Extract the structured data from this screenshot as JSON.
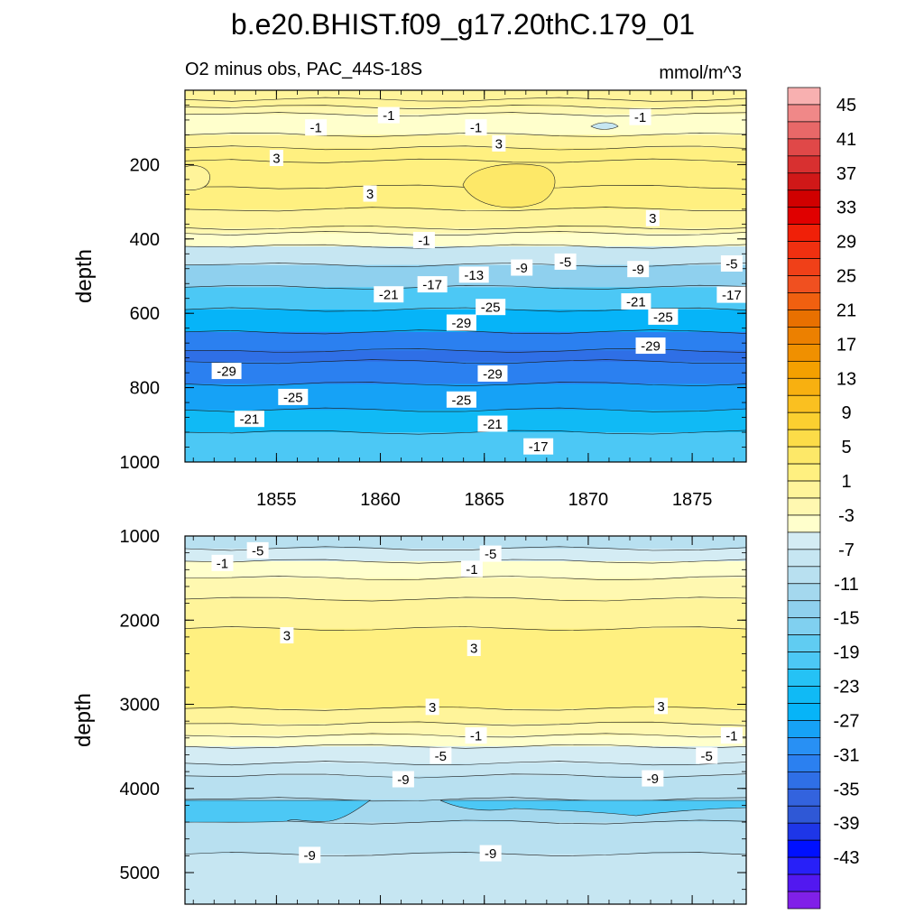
{
  "title": "b.e20.BHIST.f09_g17.20thC.179_01",
  "chart_data": [
    {
      "type": "contour",
      "panel": "upper",
      "subtitle_left": "O2 minus obs, PAC_44S-18S",
      "subtitle_right": "mmol/m^3",
      "ylabel": "depth",
      "ylim": [
        0,
        1000
      ],
      "y_reversed": true,
      "y_ticks": [
        "200",
        "400",
        "600",
        "800",
        "1000"
      ],
      "y_tick_values": [
        200,
        400,
        600,
        800,
        1000
      ],
      "xlim": [
        1850.6,
        1877.6
      ],
      "x_ticks": [
        "1855",
        "1860",
        "1865",
        "1870",
        "1875"
      ],
      "x_tick_values": [
        1855,
        1860,
        1865,
        1870,
        1875
      ],
      "bands": [
        {
          "depth": 0,
          "value": 1.5
        },
        {
          "depth": 25,
          "value": 1
        },
        {
          "depth": 45,
          "value": 0.5
        },
        {
          "depth": 65,
          "value": -2
        },
        {
          "depth": 120,
          "value": 1
        },
        {
          "depth": 155,
          "value": 3.5
        },
        {
          "depth": 190,
          "value": 4.5
        },
        {
          "depth": 260,
          "value": 3.5
        },
        {
          "depth": 320,
          "value": 1.5
        },
        {
          "depth": 370,
          "value": 0.5
        },
        {
          "depth": 385,
          "value": -2
        },
        {
          "depth": 420,
          "value": -6
        },
        {
          "depth": 470,
          "value": -12
        },
        {
          "depth": 530,
          "value": -19
        },
        {
          "depth": 590,
          "value": -25
        },
        {
          "depth": 650,
          "value": -30
        },
        {
          "depth": 700,
          "value": -32
        },
        {
          "depth": 730,
          "value": -30
        },
        {
          "depth": 790,
          "value": -26
        },
        {
          "depth": 860,
          "value": -22
        },
        {
          "depth": 920,
          "value": -18
        },
        {
          "depth": 1000,
          "value": -16
        }
      ],
      "labels": [
        {
          "t": "-1",
          "year": 1860.4,
          "depth": 67
        },
        {
          "t": "-1",
          "year": 1872.5,
          "depth": 72
        },
        {
          "t": "-1",
          "year": 1856.9,
          "depth": 100
        },
        {
          "t": "-1",
          "year": 1864.6,
          "depth": 100
        },
        {
          "t": "3",
          "year": 1865.7,
          "depth": 143
        },
        {
          "t": "3",
          "year": 1855.0,
          "depth": 182
        },
        {
          "t": "3",
          "year": 1859.5,
          "depth": 278
        },
        {
          "t": "3",
          "year": 1873.1,
          "depth": 344
        },
        {
          "t": "-1",
          "year": 1862.1,
          "depth": 403
        },
        {
          "t": "-9",
          "year": 1866.8,
          "depth": 477
        },
        {
          "t": "-5",
          "year": 1868.9,
          "depth": 461
        },
        {
          "t": "-9",
          "year": 1872.4,
          "depth": 481
        },
        {
          "t": "-5",
          "year": 1876.9,
          "depth": 466
        },
        {
          "t": "-13",
          "year": 1864.5,
          "depth": 496
        },
        {
          "t": "-17",
          "year": 1862.5,
          "depth": 522
        },
        {
          "t": "-17",
          "year": 1876.9,
          "depth": 550
        },
        {
          "t": "-21",
          "year": 1860.4,
          "depth": 549
        },
        {
          "t": "-21",
          "year": 1872.3,
          "depth": 568
        },
        {
          "t": "-25",
          "year": 1865.3,
          "depth": 583
        },
        {
          "t": "-25",
          "year": 1873.6,
          "depth": 609
        },
        {
          "t": "-29",
          "year": 1863.9,
          "depth": 625
        },
        {
          "t": "-29",
          "year": 1873.0,
          "depth": 687
        },
        {
          "t": "-29",
          "year": 1852.6,
          "depth": 755
        },
        {
          "t": "-29",
          "year": 1865.4,
          "depth": 762
        },
        {
          "t": "-25",
          "year": 1855.8,
          "depth": 825
        },
        {
          "t": "-25",
          "year": 1863.9,
          "depth": 832
        },
        {
          "t": "-21",
          "year": 1853.7,
          "depth": 884
        },
        {
          "t": "-21",
          "year": 1865.4,
          "depth": 897
        },
        {
          "t": "-17",
          "year": 1867.6,
          "depth": 958
        }
      ]
    },
    {
      "type": "contour",
      "panel": "lower",
      "ylabel": "depth",
      "ylim": [
        1000,
        5375
      ],
      "y_reversed": true,
      "y_ticks": [
        "1000",
        "2000",
        "3000",
        "4000",
        "5000"
      ],
      "y_tick_values": [
        1000,
        2000,
        3000,
        4000,
        5000
      ],
      "xlim": [
        1850.6,
        1877.6
      ],
      "bands": [
        {
          "depth": 1000,
          "value": -8
        },
        {
          "depth": 1150,
          "value": -5
        },
        {
          "depth": 1300,
          "value": -2
        },
        {
          "depth": 1500,
          "value": 0.5
        },
        {
          "depth": 1750,
          "value": 1.5
        },
        {
          "depth": 2100,
          "value": 3.5
        },
        {
          "depth": 3050,
          "value": 1.5
        },
        {
          "depth": 3230,
          "value": 0.5
        },
        {
          "depth": 3370,
          "value": -2
        },
        {
          "depth": 3500,
          "value": -4
        },
        {
          "depth": 3700,
          "value": -6
        },
        {
          "depth": 3850,
          "value": -9
        },
        {
          "depth": 4130,
          "value": -11
        },
        {
          "depth": 4400,
          "value": -9
        },
        {
          "depth": 4780,
          "value": -6
        },
        {
          "depth": 5375,
          "value": -5
        }
      ],
      "labels": [
        {
          "t": "-5",
          "year": 1854.1,
          "depth": 1170
        },
        {
          "t": "-5",
          "year": 1865.3,
          "depth": 1210
        },
        {
          "t": "-1",
          "year": 1852.4,
          "depth": 1320
        },
        {
          "t": "-1",
          "year": 1864.4,
          "depth": 1390
        },
        {
          "t": "3",
          "year": 1855.5,
          "depth": 2180
        },
        {
          "t": "3",
          "year": 1864.5,
          "depth": 2330
        },
        {
          "t": "3",
          "year": 1862.5,
          "depth": 3030
        },
        {
          "t": "3",
          "year": 1873.5,
          "depth": 3020
        },
        {
          "t": "-1",
          "year": 1864.6,
          "depth": 3370
        },
        {
          "t": "-1",
          "year": 1876.9,
          "depth": 3370
        },
        {
          "t": "-5",
          "year": 1862.9,
          "depth": 3610
        },
        {
          "t": "-5",
          "year": 1875.7,
          "depth": 3610
        },
        {
          "t": "-9",
          "year": 1861.1,
          "depth": 3890
        },
        {
          "t": "-9",
          "year": 1873.1,
          "depth": 3880
        },
        {
          "t": "-9",
          "year": 1856.6,
          "depth": 4790
        },
        {
          "t": "-9",
          "year": 1865.3,
          "depth": 4770
        }
      ]
    }
  ],
  "colorbar": {
    "labels": [
      "45",
      "41",
      "37",
      "33",
      "29",
      "25",
      "21",
      "17",
      "13",
      "9",
      "5",
      "1",
      "-3",
      "-7",
      "-11",
      "-15",
      "-19",
      "-23",
      "-27",
      "-31",
      "-35",
      "-39",
      "-43"
    ],
    "level_min": -45,
    "level_max": 47,
    "level_step": 2,
    "colors": [
      "#8020e8",
      "#5218f0",
      "#2820f8",
      "#0010ff",
      "#1e36e8",
      "#2f58d6",
      "#3363de",
      "#2f6fe6",
      "#2b80f0",
      "#2890f4",
      "#16a2f6",
      "#06b4f8",
      "#10baf5",
      "#25c2f5",
      "#4cc8f5",
      "#60ccf2",
      "#80d0f0",
      "#8fd0ee",
      "#a4d8ee",
      "#b8e0f0",
      "#c6e6f2",
      "#d4ecf4",
      "#ffffcc",
      "#fff8b0",
      "#fff49a",
      "#fff080",
      "#fde868",
      "#fcdc48",
      "#fbd030",
      "#fac020",
      "#f8b010",
      "#f4a000",
      "#f09000",
      "#ec8000",
      "#e87000",
      "#f06010",
      "#f05020",
      "#f04018",
      "#f03010",
      "#f02008",
      "#e00000",
      "#d00000",
      "#d01818",
      "#d83030",
      "#e04848",
      "#e86868",
      "#f08888",
      "#f8b0b0"
    ]
  }
}
